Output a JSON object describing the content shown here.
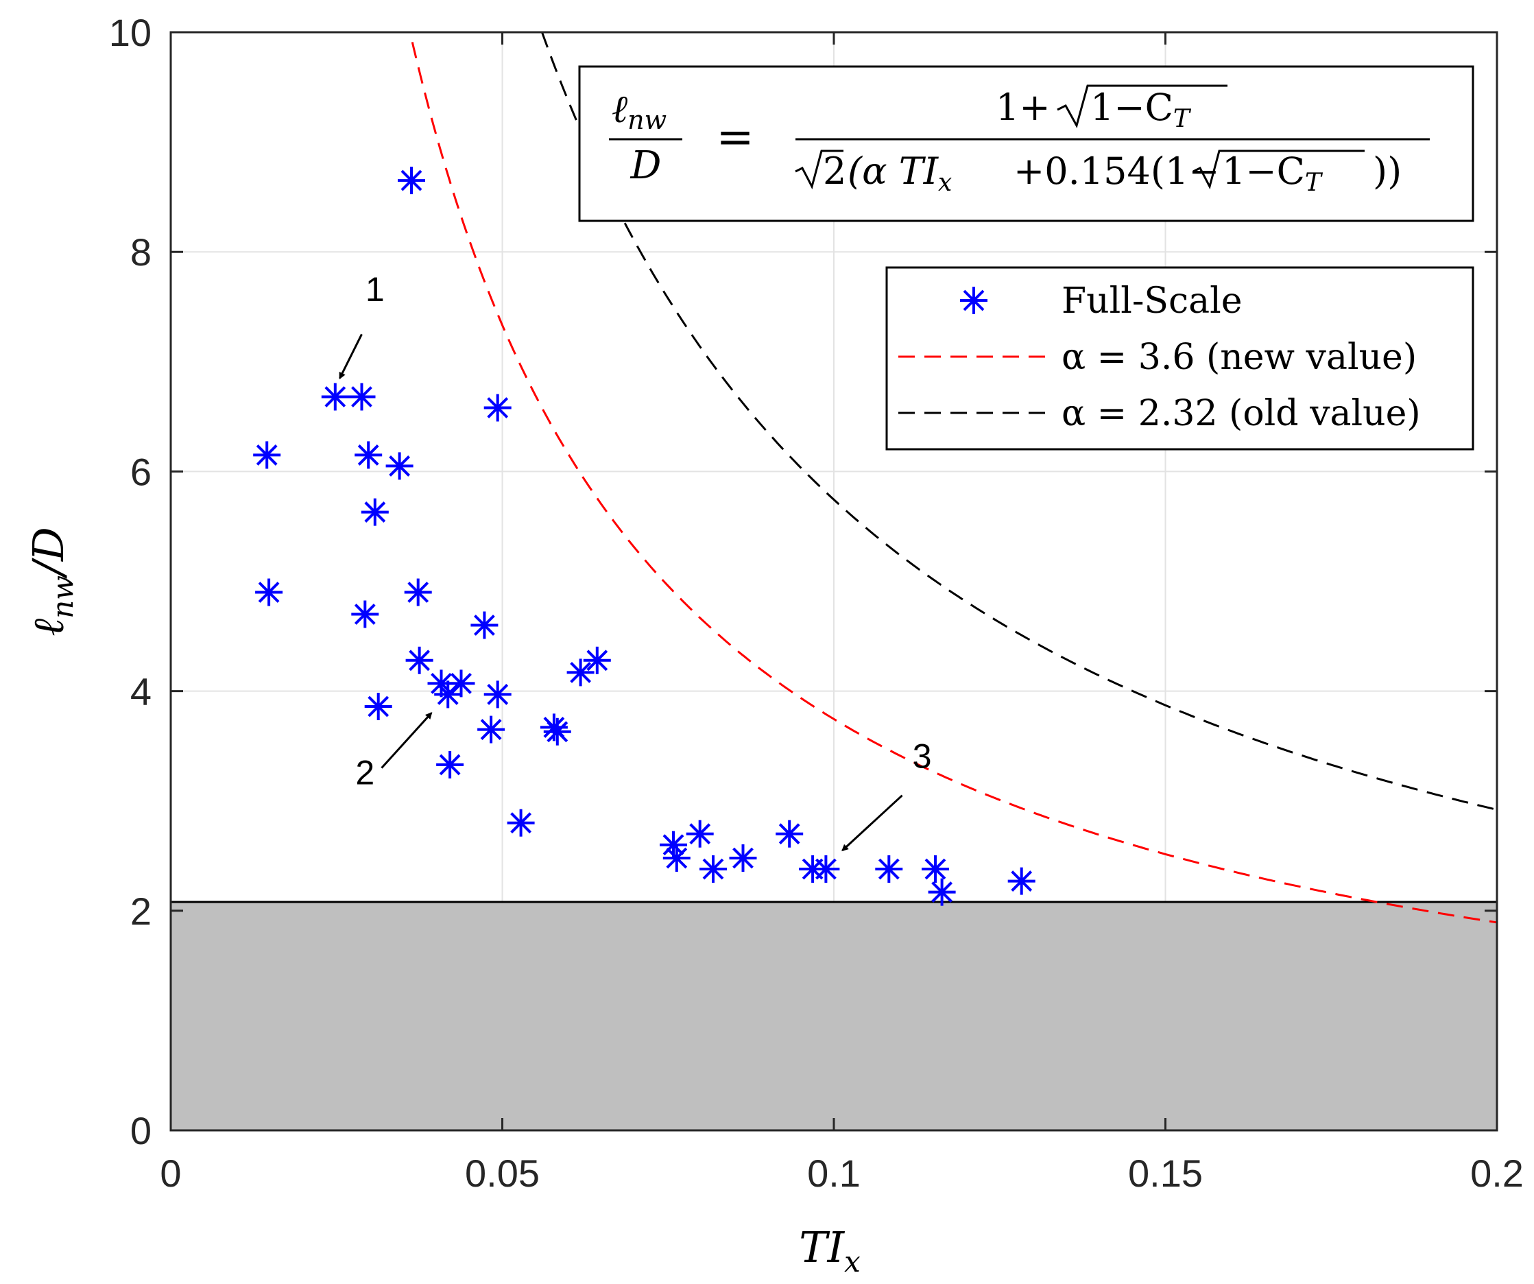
{
  "chart_data": {
    "type": "scatter",
    "title": "",
    "xlabel": "TI",
    "xlabel_sub": "x",
    "ylabel_main": "ℓ",
    "ylabel_sub": "nw",
    "ylabel_tail": "/D",
    "xlim": [
      0,
      0.2
    ],
    "ylim": [
      0,
      10
    ],
    "grid": true,
    "x_ticks": [
      0,
      0.05,
      0.1,
      0.15,
      0.2
    ],
    "x_tick_labels": [
      "0",
      "0.05",
      "0.1",
      "0.15",
      "0.2"
    ],
    "y_ticks": [
      0,
      2,
      4,
      6,
      8,
      10
    ],
    "y_tick_labels": [
      "0",
      "2",
      "4",
      "6",
      "8",
      "10"
    ],
    "shaded_region": {
      "y_from": 0,
      "y_to": 2.08,
      "color": "#bfbfbf"
    },
    "formula": {
      "lhs_num": "ℓ",
      "lhs_num_sub": "nw",
      "lhs_den": "D",
      "equals": "=",
      "rhs_num_pre": "1+",
      "rhs_num_rad": "1−C",
      "rhs_num_rad_sub": "T",
      "rhs_den_sqrt2": "2",
      "rhs_den_a": "(α TI",
      "rhs_den_a_sub": "x",
      "rhs_den_b": "+0.154(1−",
      "rhs_den_rad": "1−C",
      "rhs_den_rad_sub": "T",
      "rhs_den_close": "))"
    },
    "legend_position": "upper-right",
    "series": [
      {
        "name": "Full-Scale",
        "kind": "markers",
        "marker": "asterisk",
        "color": "#0000ff",
        "points": [
          [
            0.0145,
            6.15
          ],
          [
            0.0148,
            4.9
          ],
          [
            0.0248,
            6.68
          ],
          [
            0.0288,
            6.68
          ],
          [
            0.0298,
            6.15
          ],
          [
            0.0308,
            5.63
          ],
          [
            0.0345,
            6.05
          ],
          [
            0.0363,
            8.65
          ],
          [
            0.0293,
            4.7
          ],
          [
            0.0373,
            4.9
          ],
          [
            0.0375,
            4.28
          ],
          [
            0.0408,
            4.07
          ],
          [
            0.0418,
            3.97
          ],
          [
            0.0438,
            4.07
          ],
          [
            0.0313,
            3.86
          ],
          [
            0.0421,
            3.33
          ],
          [
            0.0473,
            4.6
          ],
          [
            0.0483,
            3.65
          ],
          [
            0.0493,
            6.58
          ],
          [
            0.0493,
            3.97
          ],
          [
            0.0528,
            2.8
          ],
          [
            0.0578,
            3.67
          ],
          [
            0.0583,
            3.63
          ],
          [
            0.0618,
            4.17
          ],
          [
            0.0643,
            4.28
          ],
          [
            0.0758,
            2.6
          ],
          [
            0.0763,
            2.48
          ],
          [
            0.0798,
            2.7
          ],
          [
            0.0818,
            2.38
          ],
          [
            0.0863,
            2.48
          ],
          [
            0.0933,
            2.7
          ],
          [
            0.0968,
            2.38
          ],
          [
            0.0988,
            2.38
          ],
          [
            0.1083,
            2.38
          ],
          [
            0.1153,
            2.38
          ],
          [
            0.1163,
            2.17
          ],
          [
            0.1283,
            2.27
          ]
        ]
      },
      {
        "name": "α = 3.6 (new value)",
        "kind": "curve",
        "alpha": 3.6,
        "ct": 0.1,
        "color": "#ff0000",
        "dash": "24 14"
      },
      {
        "name": "α = 2.32 (old value)",
        "kind": "curve",
        "alpha": 2.32,
        "ct": 0.1,
        "color": "#000000",
        "dash": "24 14"
      }
    ],
    "annotations": [
      {
        "label": "1",
        "text_at": [
          0.0308,
          7.55
        ],
        "arrow_from": [
          0.0288,
          7.25
        ],
        "arrow_to": [
          0.0255,
          6.85
        ]
      },
      {
        "label": "2",
        "text_at": [
          0.0293,
          3.15
        ],
        "arrow_from": [
          0.0318,
          3.3
        ],
        "arrow_to": [
          0.0393,
          3.8
        ]
      },
      {
        "label": "3",
        "text_at": [
          0.1133,
          3.3
        ],
        "arrow_from": [
          0.1103,
          3.05
        ],
        "arrow_to": [
          0.1013,
          2.55
        ]
      }
    ]
  }
}
